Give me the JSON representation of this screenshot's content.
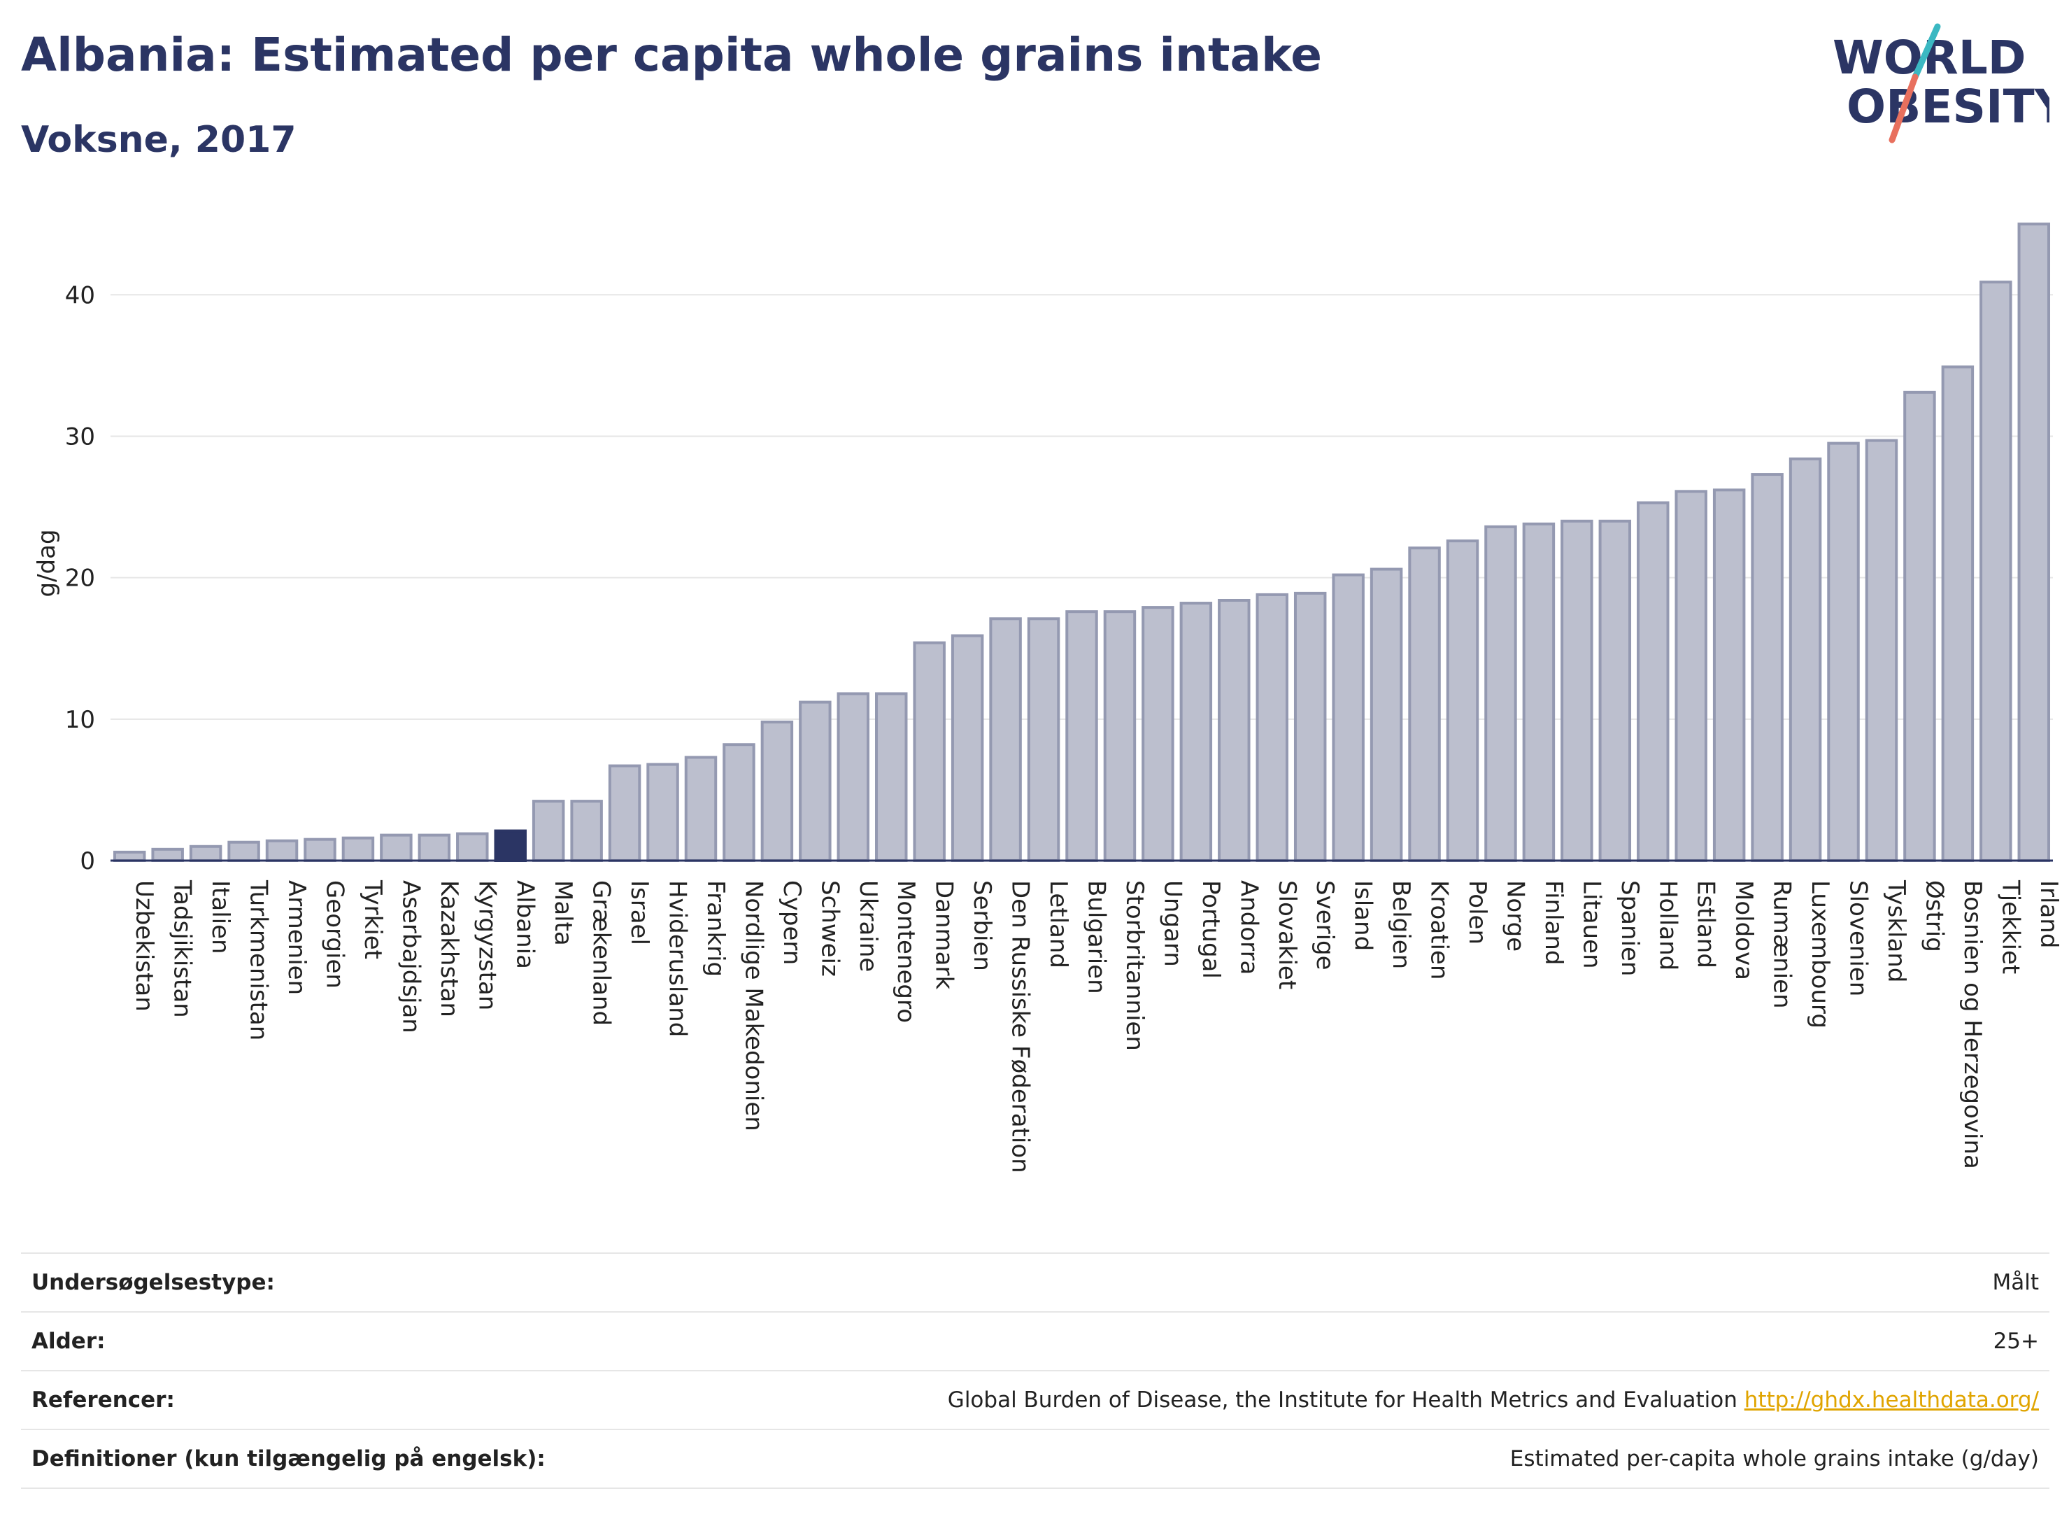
{
  "header": {
    "title": "Albania: Estimated per capita whole grains intake",
    "subtitle": "Voksne, 2017"
  },
  "logo": {
    "line1": "WORLD",
    "line2": "OBESITY"
  },
  "colors": {
    "bar": "#bcbfce",
    "bar_stroke": "#9499b1",
    "highlight": "#2b3564",
    "grid": "#e6e6e6",
    "axis": "#2b3564",
    "link": "#e0a400"
  },
  "chart_data": {
    "type": "bar",
    "ylabel": "g/dag",
    "ylim": [
      0,
      46
    ],
    "yticks": [
      0,
      10,
      20,
      30,
      40
    ],
    "grid": true,
    "highlight": "Albania",
    "categories": [
      "Uzbekistan",
      "Tadsjikistan",
      "Italien",
      "Turkmenistan",
      "Armenien",
      "Georgien",
      "Tyrkiet",
      "Aserbajdsjan",
      "Kazakhstan",
      "Kyrgyzstan",
      "Albania",
      "Malta",
      "Grækenland",
      "Israel",
      "Hviderusland",
      "Frankrig",
      "Nordlige Makedonien",
      "Cypern",
      "Schweiz",
      "Ukraine",
      "Montenegro",
      "Danmark",
      "Serbien",
      "Den Russiske Føderation",
      "Letland",
      "Bulgarien",
      "Storbritannien",
      "Ungarn",
      "Portugal",
      "Andorra",
      "Slovakiet",
      "Sverige",
      "Island",
      "Belgien",
      "Kroatien",
      "Polen",
      "Norge",
      "Finland",
      "Litauen",
      "Spanien",
      "Holland",
      "Estland",
      "Moldova",
      "Rumænien",
      "Luxembourg",
      "Slovenien",
      "Tyskland",
      "Østrig",
      "Bosnien og Herzegovina",
      "Tjekkiet",
      "Irland"
    ],
    "values": [
      0.6,
      0.8,
      1.0,
      1.3,
      1.4,
      1.5,
      1.6,
      1.8,
      1.8,
      1.9,
      2.1,
      4.2,
      4.2,
      6.7,
      6.8,
      7.3,
      8.2,
      9.8,
      11.2,
      11.8,
      11.8,
      15.4,
      15.9,
      17.1,
      17.1,
      17.6,
      17.6,
      17.9,
      18.2,
      18.4,
      18.8,
      18.9,
      20.2,
      20.6,
      22.1,
      22.6,
      23.6,
      23.8,
      24.0,
      24.0,
      25.3,
      26.1,
      26.2,
      27.3,
      28.4,
      29.5,
      29.7,
      33.1,
      34.9,
      40.9,
      45.0
    ]
  },
  "meta": {
    "rows": [
      {
        "key": "Undersøgelsestype:",
        "value": "Målt"
      },
      {
        "key": "Alder:",
        "value": "25+"
      },
      {
        "key": "Referencer:",
        "value": "Global Burden of Disease, the Institute for Health Metrics and Evaluation",
        "link": "http://ghdx.healthdata.org/"
      },
      {
        "key": "Definitioner (kun tilgængelig på engelsk):",
        "value": "Estimated per-capita whole grains intake (g/day)"
      }
    ]
  }
}
